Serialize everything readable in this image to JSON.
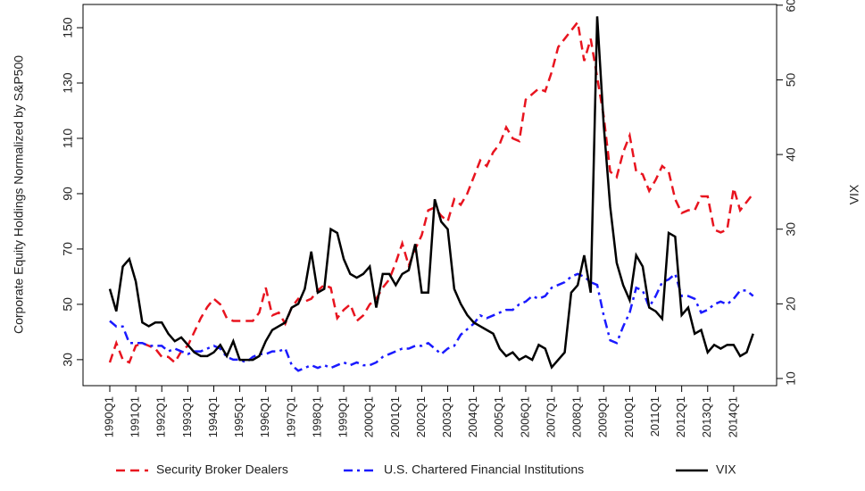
{
  "chart_data": {
    "type": "line",
    "y_label": "Corporate Equity Holdings Normalized by S&P500",
    "y2_label": "VIX",
    "categories": [
      "1990Q1",
      null,
      null,
      null,
      "1991Q1",
      null,
      null,
      null,
      "1992Q1",
      null,
      null,
      null,
      "1993Q1",
      null,
      null,
      null,
      "1994Q1",
      null,
      null,
      null,
      "1995Q1",
      null,
      null,
      null,
      "1996Q1",
      null,
      null,
      null,
      "1997Q1",
      null,
      null,
      null,
      "1998Q1",
      null,
      null,
      null,
      "1999Q1",
      null,
      null,
      null,
      "2000Q1",
      null,
      null,
      null,
      "2001Q1",
      null,
      null,
      null,
      "2002Q1",
      null,
      null,
      null,
      "2003Q1",
      null,
      null,
      null,
      "2004Q1",
      null,
      null,
      null,
      "2005Q1",
      null,
      null,
      null,
      "2006Q1",
      null,
      null,
      null,
      "2007Q1",
      null,
      null,
      null,
      "2008Q1",
      null,
      null,
      null,
      "2009Q1",
      null,
      null,
      null,
      "2010Q1",
      null,
      null,
      null,
      "2011Q1",
      null,
      null,
      null,
      "2012Q1",
      null,
      null,
      null,
      "2013Q1",
      null,
      null,
      null,
      "2014Q1",
      null,
      null,
      null
    ],
    "series": [
      {
        "name": "Security Broker Dealers",
        "color": "#e8141f",
        "linestyle": "dashed",
        "values": [
          29,
          36,
          30,
          29,
          35,
          36,
          35,
          34,
          31,
          31,
          29,
          33,
          35,
          40,
          45,
          49,
          52,
          50,
          45,
          44,
          44,
          44,
          44,
          47,
          56,
          46,
          47,
          43,
          49,
          52,
          51,
          52,
          55,
          57,
          56,
          45,
          48,
          50,
          44,
          46,
          50,
          52,
          56,
          59,
          65,
          72,
          64,
          70,
          75,
          84,
          85,
          82,
          80,
          88,
          86,
          90,
          96,
          102,
          100,
          105,
          108,
          114,
          110,
          109,
          124,
          126,
          128,
          127,
          134,
          143,
          146,
          149,
          152,
          138,
          146,
          132,
          118,
          98,
          96,
          105,
          111,
          98,
          97,
          91,
          95,
          100,
          98,
          88,
          83,
          84,
          84,
          89,
          89,
          77,
          76,
          77,
          92,
          84,
          87,
          90
        ]
      },
      {
        "name": "U.S. Chartered Financial Institutions",
        "color": "#1a1aff",
        "linestyle": "dashdot",
        "values": [
          44,
          42,
          42,
          36,
          36,
          36,
          35,
          35,
          35,
          33,
          34,
          33,
          32,
          33,
          33,
          34,
          35,
          34,
          31,
          30,
          30,
          29,
          31,
          32,
          32,
          33,
          33,
          34,
          28,
          26,
          27,
          28,
          27,
          28,
          27,
          28,
          29,
          28,
          29,
          28,
          28,
          29,
          31,
          32,
          33,
          34,
          34,
          35,
          35,
          36,
          34,
          32,
          34,
          35,
          39,
          41,
          43,
          46,
          45,
          46,
          47,
          48,
          48,
          50,
          51,
          53,
          52,
          53,
          56,
          57,
          58,
          60,
          61,
          60,
          58,
          57,
          46,
          37,
          36,
          42,
          47,
          56,
          55,
          49,
          53,
          58,
          59,
          61,
          53,
          53,
          52,
          47,
          48,
          50,
          51,
          50,
          52,
          55,
          55,
          53
        ]
      },
      {
        "name": "VIX",
        "color": "#000000",
        "linestyle": "solid",
        "axis": "y2",
        "values": [
          22,
          19,
          25,
          26,
          23,
          17.5,
          17,
          17.5,
          17.5,
          16,
          15,
          15.5,
          14.5,
          13.5,
          13,
          13,
          13.5,
          14.5,
          13,
          15,
          12.5,
          12.5,
          12.5,
          13,
          15,
          16.5,
          17,
          17.5,
          19.5,
          20,
          22,
          27,
          21.5,
          22,
          30,
          29.5,
          26,
          24,
          23.5,
          24,
          25,
          19.5,
          24,
          24,
          22.5,
          24,
          24.5,
          28,
          21.5,
          21.5,
          34,
          31,
          30,
          22,
          20,
          18.5,
          17.5,
          17,
          16.5,
          16,
          14,
          13,
          13.5,
          12.5,
          13,
          12.5,
          14.5,
          14,
          11.5,
          12.5,
          13.5,
          21.5,
          22.5,
          26.5,
          21.5,
          58.5,
          44,
          33,
          25.5,
          22.5,
          20.5,
          26.5,
          25,
          19.5,
          19,
          18,
          29.5,
          29,
          18.5,
          19.5,
          16,
          16.5,
          13.5,
          14.5,
          14,
          14.5,
          14.5,
          13,
          13.5,
          16
        ]
      }
    ],
    "ylim": [
      20.6,
      158.4
    ],
    "yticks": [
      30,
      50,
      70,
      90,
      110,
      130,
      150
    ],
    "y2lim": [
      9.04,
      60.1
    ],
    "y2ticks": [
      10,
      20,
      30,
      40,
      50,
      60
    ]
  }
}
